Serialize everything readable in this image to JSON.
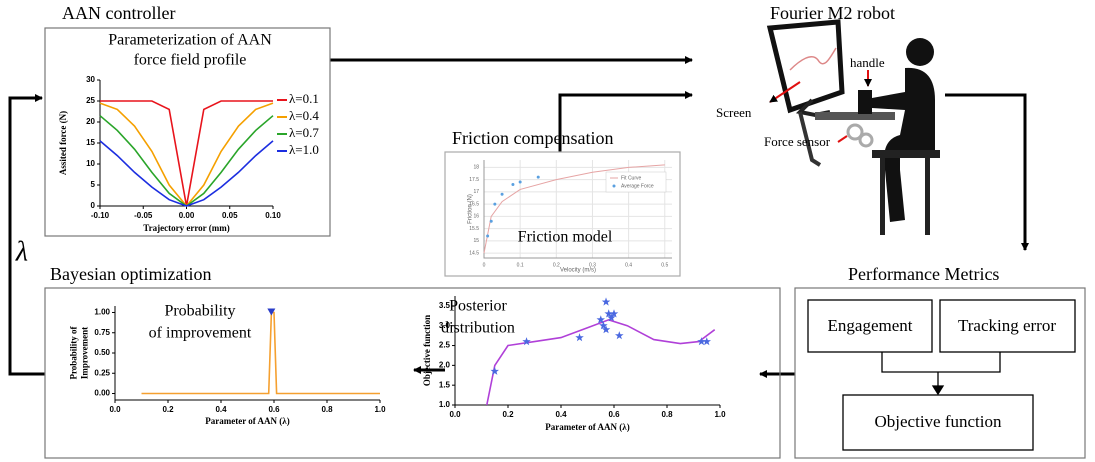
{
  "aan_controller": {
    "title": "AAN controller",
    "chart": {
      "type": "line",
      "title": [
        "Parameterization of AAN",
        "force field profile"
      ],
      "x_label": "Trajectory error (mm)",
      "y_label": "Assited force (N)",
      "xlim": [
        -0.1,
        0.1
      ],
      "ylim": [
        0,
        30
      ],
      "xticks": [
        {
          "value": -0.1,
          "label": "-0.10"
        },
        -0.05,
        {
          "value": 0,
          "label": "0.00"
        },
        0.05,
        {
          "value": 0.1,
          "label": "0.10"
        }
      ],
      "yticks": [
        0,
        5,
        10,
        15,
        20,
        25,
        30
      ],
      "legend": "right",
      "x": [
        -0.1,
        -0.08,
        -0.06,
        -0.04,
        -0.02,
        0,
        0.02,
        0.04,
        0.06,
        0.08,
        0.1
      ],
      "series": [
        {
          "name": "λ=0.1",
          "color": "#e8141c",
          "values": [
            25,
            25,
            25,
            25,
            23,
            0,
            23,
            25,
            25,
            25,
            25
          ]
        },
        {
          "name": "λ=0.4",
          "color": "#f5a000",
          "values": [
            24.5,
            23,
            19,
            13,
            5,
            0,
            5,
            13,
            19,
            23,
            24.5
          ]
        },
        {
          "name": "λ=0.7",
          "color": "#2aa52a",
          "values": [
            21.5,
            18,
            13.5,
            8,
            3,
            0,
            3,
            8,
            13.5,
            18,
            21.5
          ]
        },
        {
          "name": "λ=1.0",
          "color": "#1c2ee0",
          "values": [
            15.5,
            12,
            8,
            4.5,
            1.5,
            0,
            1.5,
            4.5,
            8,
            12,
            15.5
          ]
        }
      ]
    }
  },
  "friction_compensation": {
    "title": "Friction compensation",
    "chart": {
      "type": "line",
      "annotation": [
        "Friction model"
      ],
      "x_label": "Velocity (m/s)",
      "y_label": "Friction (N)",
      "xlim": [
        0,
        0.52
      ],
      "ylim": [
        14.3,
        18.3
      ],
      "xticks": [
        0,
        0.1,
        0.2,
        0.3,
        0.4,
        0.5
      ],
      "yticks": [
        14.5,
        15,
        15.5,
        16,
        16.5,
        17,
        17.5,
        18
      ],
      "grid": true,
      "legend": "upper right",
      "series": [
        {
          "name": "Fit Curve",
          "color": "#e6a4a4",
          "x": [
            0,
            0.02,
            0.05,
            0.1,
            0.2,
            0.3,
            0.4,
            0.5
          ],
          "values": [
            14.5,
            16,
            16.6,
            17.1,
            17.5,
            17.8,
            18,
            18.1
          ]
        },
        {
          "name": "Average Force",
          "type": "scatter",
          "marker": "dot",
          "color": "#5aa0e0",
          "x": [
            0.01,
            0.02,
            0.03,
            0.05,
            0.08,
            0.1,
            0.15
          ],
          "values": [
            15.2,
            15.8,
            16.5,
            16.9,
            17.3,
            17.4,
            17.6
          ]
        }
      ]
    }
  },
  "robot": {
    "title": "Fourier M2 robot",
    "handle": "handle",
    "screen": "Screen",
    "force_sensor": "Force sensor"
  },
  "feedback_parameter": "λ",
  "bayesian_optimization": {
    "title": "Bayesian optimization",
    "improvement_chart": {
      "type": "line",
      "annotation": [
        "Probability",
        "of improvement"
      ],
      "x_label": "Parameter of AAN (λ)",
      "y_label": [
        "Probability of",
        "Improvement"
      ],
      "xlim": [
        0,
        1
      ],
      "ylim": [
        -0.08,
        1.08
      ],
      "xticks": [
        {
          "value": 0,
          "label": "0.0"
        },
        0.2,
        0.4,
        0.6,
        0.8,
        {
          "value": 1,
          "label": "1.0"
        }
      ],
      "yticks": [
        {
          "value": 0,
          "label": "0.00"
        },
        0.25,
        {
          "value": 0.5,
          "label": "0.50"
        },
        0.75,
        {
          "value": 1,
          "label": "1.00"
        }
      ],
      "series": [
        {
          "color": "#f5a030",
          "x": [
            0.1,
            0.58,
            0.59,
            0.6,
            0.61,
            0.62,
            1.0
          ],
          "values": [
            0,
            0,
            1,
            1,
            0,
            0,
            0
          ]
        },
        {
          "type": "scatter",
          "marker": "triangle",
          "color": "#2a3cc8",
          "x": [
            0.59
          ],
          "values": [
            1
          ]
        }
      ]
    },
    "posterior_chart": {
      "type": "line",
      "annotation": [
        "Posterior",
        "distribution"
      ],
      "x_label": "Parameter of AAN (λ)",
      "y_label": [
        "Objective function"
      ],
      "xlim": [
        0,
        1
      ],
      "ylim": [
        1,
        3.75
      ],
      "xticks": [
        {
          "value": 0,
          "label": "0.0"
        },
        0.2,
        0.4,
        0.6,
        0.8,
        {
          "value": 1,
          "label": "1.0"
        }
      ],
      "yticks": [
        {
          "value": 1,
          "label": "1.0"
        },
        1.5,
        {
          "value": 2,
          "label": "2.0"
        },
        2.5,
        {
          "value": 3,
          "label": "3.0"
        },
        3.5
      ],
      "series": [
        {
          "color": "#b040d8",
          "x": [
            0.12,
            0.15,
            0.2,
            0.3,
            0.4,
            0.5,
            0.58,
            0.65,
            0.75,
            0.85,
            0.92,
            0.98
          ],
          "values": [
            1.0,
            2.0,
            2.5,
            2.6,
            2.7,
            2.95,
            3.15,
            3.0,
            2.65,
            2.55,
            2.6,
            2.9
          ]
        },
        {
          "type": "scatter",
          "marker": "star",
          "color": "#4a68e0",
          "x": [
            0.15,
            0.27,
            0.47,
            0.55,
            0.57,
            0.58,
            0.6,
            0.62,
            0.56,
            0.57,
            0.59,
            0.93,
            0.95
          ],
          "values": [
            1.85,
            2.6,
            2.7,
            3.15,
            3.6,
            3.3,
            3.3,
            2.75,
            3.0,
            2.9,
            3.2,
            2.6,
            2.6
          ]
        }
      ]
    }
  },
  "performance_metrics": {
    "title": "Performance Metrics",
    "engagement": "Engagement",
    "tracking_error": "Tracking error",
    "objective_function": "Objective function"
  }
}
